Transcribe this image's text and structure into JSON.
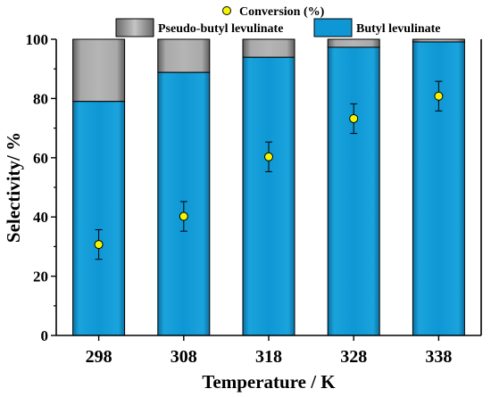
{
  "chart_data": {
    "type": "bar",
    "stacked": true,
    "categories": [
      "298",
      "308",
      "318",
      "328",
      "338"
    ],
    "series": [
      {
        "name": "Butyl levulinate",
        "values": [
          79,
          88.8,
          93.9,
          97.3,
          99.1
        ],
        "color": "#0e97d4"
      },
      {
        "name": "Pseudo-butyl levulinate",
        "values": [
          21,
          11.2,
          6.1,
          2.7,
          0.9
        ],
        "color": "#8c8c8c"
      }
    ],
    "scatter_series": {
      "name": "Conversion (%)",
      "values": [
        30.7,
        40.2,
        60.3,
        73.2,
        80.8
      ],
      "errors": [
        5,
        5,
        5,
        5,
        5
      ],
      "color": "#f5f500"
    },
    "xlabel": "Temperature / K",
    "ylabel": "Selectivity/ %",
    "ylim": [
      0,
      100
    ],
    "yticks": [
      "0",
      "20",
      "40",
      "60",
      "80",
      "100"
    ],
    "legend_position": "top"
  }
}
